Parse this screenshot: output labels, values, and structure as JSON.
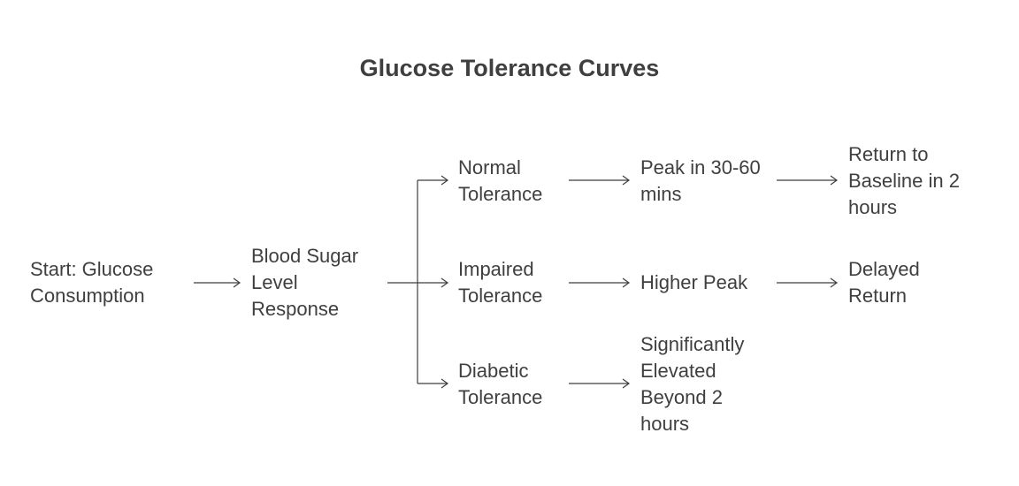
{
  "diagram": {
    "title": "Glucose Tolerance Curves",
    "nodes": {
      "start": "Start: Glucose Consumption",
      "response": "Blood Sugar Level Response",
      "normal": "Normal Tolerance",
      "impaired": "Impaired Tolerance",
      "diabetic": "Diabetic Tolerance",
      "normal_peak": "Peak in 30-60 mins",
      "impaired_peak": "Higher Peak",
      "diabetic_outcome": "Significantly Elevated Beyond 2 hours",
      "normal_return": "Return to Baseline in 2 hours",
      "impaired_return": "Delayed Return"
    },
    "edges": [
      {
        "from": "start",
        "to": "response"
      },
      {
        "from": "response",
        "to": "normal"
      },
      {
        "from": "response",
        "to": "impaired"
      },
      {
        "from": "response",
        "to": "diabetic"
      },
      {
        "from": "normal",
        "to": "normal_peak"
      },
      {
        "from": "impaired",
        "to": "impaired_peak"
      },
      {
        "from": "diabetic",
        "to": "diabetic_outcome"
      },
      {
        "from": "normal_peak",
        "to": "normal_return"
      },
      {
        "from": "impaired_peak",
        "to": "impaired_return"
      }
    ]
  }
}
